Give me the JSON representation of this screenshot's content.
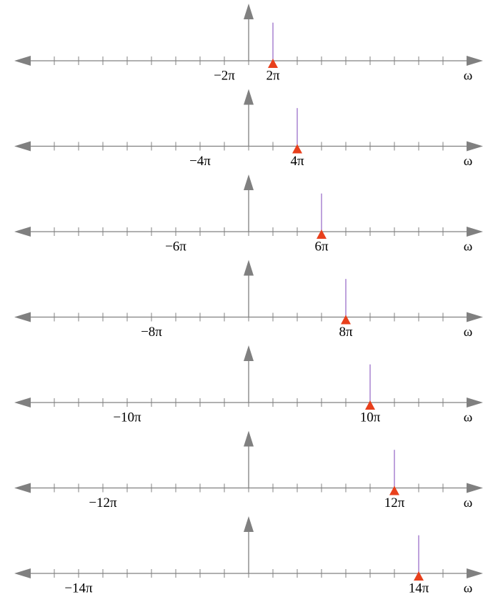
{
  "chart_data": [
    {
      "type": "stem",
      "x_label": "ω",
      "xlim": [
        -59.69,
        59.69
      ],
      "ylim": [
        0,
        1.5
      ],
      "marker_color": "#e8401c",
      "color": "#9b6fc9",
      "xticks": [
        {
          "value": -6.2832,
          "label": "−2π"
        },
        {
          "value": 6.2832,
          "label": "2π"
        }
      ],
      "minor_xticks": [
        -56.5487,
        -50.2655,
        -43.9823,
        -37.6991,
        -31.4159,
        -25.1327,
        -18.8496,
        -12.5664,
        -6.2832,
        0,
        6.2832,
        12.5664,
        18.8496,
        25.1327,
        31.4159,
        37.6991,
        43.9823,
        50.2655,
        56.5487
      ],
      "x": [
        6.2832
      ],
      "values": [
        1
      ]
    },
    {
      "type": "stem",
      "x_label": "ω",
      "xlim": [
        -59.69,
        59.69
      ],
      "ylim": [
        0,
        1.5
      ],
      "marker_color": "#e8401c",
      "color": "#9b6fc9",
      "xticks": [
        {
          "value": -12.5664,
          "label": "−4π"
        },
        {
          "value": 12.5664,
          "label": "4π"
        }
      ],
      "minor_xticks": [
        -56.5487,
        -50.2655,
        -43.9823,
        -37.6991,
        -31.4159,
        -25.1327,
        -18.8496,
        -12.5664,
        -6.2832,
        0,
        6.2832,
        12.5664,
        18.8496,
        25.1327,
        31.4159,
        37.6991,
        43.9823,
        50.2655,
        56.5487
      ],
      "x": [
        12.5664
      ],
      "values": [
        1
      ]
    },
    {
      "type": "stem",
      "x_label": "ω",
      "xlim": [
        -59.69,
        59.69
      ],
      "ylim": [
        0,
        1.5
      ],
      "marker_color": "#e8401c",
      "color": "#9b6fc9",
      "xticks": [
        {
          "value": -18.8496,
          "label": "−6π"
        },
        {
          "value": 18.8496,
          "label": "6π"
        }
      ],
      "minor_xticks": [
        -56.5487,
        -50.2655,
        -43.9823,
        -37.6991,
        -31.4159,
        -25.1327,
        -18.8496,
        -12.5664,
        -6.2832,
        0,
        6.2832,
        12.5664,
        18.8496,
        25.1327,
        31.4159,
        37.6991,
        43.9823,
        50.2655,
        56.5487
      ],
      "x": [
        18.8496
      ],
      "values": [
        1
      ]
    },
    {
      "type": "stem",
      "x_label": "ω",
      "xlim": [
        -59.69,
        59.69
      ],
      "ylim": [
        0,
        1.5
      ],
      "marker_color": "#e8401c",
      "color": "#9b6fc9",
      "xticks": [
        {
          "value": -25.1327,
          "label": "−8π"
        },
        {
          "value": 25.1327,
          "label": "8π"
        }
      ],
      "minor_xticks": [
        -56.5487,
        -50.2655,
        -43.9823,
        -37.6991,
        -31.4159,
        -25.1327,
        -18.8496,
        -12.5664,
        -6.2832,
        0,
        6.2832,
        12.5664,
        18.8496,
        25.1327,
        31.4159,
        37.6991,
        43.9823,
        50.2655,
        56.5487
      ],
      "x": [
        25.1327
      ],
      "values": [
        1
      ]
    },
    {
      "type": "stem",
      "x_label": "ω",
      "xlim": [
        -59.69,
        59.69
      ],
      "ylim": [
        0,
        1.5
      ],
      "marker_color": "#e8401c",
      "color": "#9b6fc9",
      "xticks": [
        {
          "value": -31.4159,
          "label": "−10π"
        },
        {
          "value": 31.4159,
          "label": "10π"
        }
      ],
      "minor_xticks": [
        -56.5487,
        -50.2655,
        -43.9823,
        -37.6991,
        -31.4159,
        -25.1327,
        -18.8496,
        -12.5664,
        -6.2832,
        0,
        6.2832,
        12.5664,
        18.8496,
        25.1327,
        31.4159,
        37.6991,
        43.9823,
        50.2655,
        56.5487
      ],
      "x": [
        31.4159
      ],
      "values": [
        1
      ]
    },
    {
      "type": "stem",
      "x_label": "ω",
      "xlim": [
        -59.69,
        59.69
      ],
      "ylim": [
        0,
        1.5
      ],
      "marker_color": "#e8401c",
      "color": "#9b6fc9",
      "xticks": [
        {
          "value": -37.6991,
          "label": "−12π"
        },
        {
          "value": 37.6991,
          "label": "12π"
        }
      ],
      "minor_xticks": [
        -56.5487,
        -50.2655,
        -43.9823,
        -37.6991,
        -31.4159,
        -25.1327,
        -18.8496,
        -12.5664,
        -6.2832,
        0,
        6.2832,
        12.5664,
        18.8496,
        25.1327,
        31.4159,
        37.6991,
        43.9823,
        50.2655,
        56.5487
      ],
      "x": [
        37.6991
      ],
      "values": [
        1
      ]
    },
    {
      "type": "stem",
      "x_label": "ω",
      "xlim": [
        -59.69,
        59.69
      ],
      "ylim": [
        0,
        1.5
      ],
      "marker_color": "#e8401c",
      "color": "#9b6fc9",
      "xticks": [
        {
          "value": -43.9823,
          "label": "−14π"
        },
        {
          "value": 43.9823,
          "label": "14π"
        }
      ],
      "minor_xticks": [
        -56.5487,
        -50.2655,
        -43.9823,
        -37.6991,
        -31.4159,
        -25.1327,
        -18.8496,
        -12.5664,
        -6.2832,
        0,
        6.2832,
        12.5664,
        18.8496,
        25.1327,
        31.4159,
        37.6991,
        43.9823,
        50.2655,
        56.5487
      ],
      "x": [
        43.9823
      ],
      "values": [
        1
      ]
    }
  ]
}
